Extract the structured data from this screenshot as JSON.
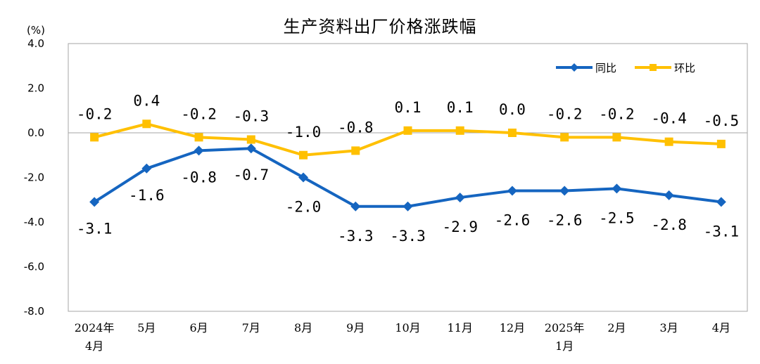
{
  "chart_data": {
    "type": "line",
    "title": "生产资料出厂价格涨跌幅",
    "ylabel": "(%)",
    "ylim": [
      -8.0,
      4.0
    ],
    "yticks": [
      "4.0",
      "2.0",
      "0.0",
      "-2.0",
      "-4.0",
      "-6.0",
      "-8.0"
    ],
    "ytick_values": [
      4.0,
      2.0,
      0.0,
      -2.0,
      -4.0,
      -6.0,
      -8.0
    ],
    "categories": [
      [
        "2024年",
        "4月"
      ],
      [
        "5月"
      ],
      [
        "6月"
      ],
      [
        "7月"
      ],
      [
        "8月"
      ],
      [
        "9月"
      ],
      [
        "10月"
      ],
      [
        "11月"
      ],
      [
        "12月"
      ],
      [
        "2025年",
        "1月"
      ],
      [
        "2月"
      ],
      [
        "3月"
      ],
      [
        "4月"
      ]
    ],
    "series": [
      {
        "name": "同比",
        "color": "#1565C0",
        "marker": "diamond",
        "values": [
          -3.1,
          -1.6,
          -0.8,
          -0.7,
          -2.0,
          -3.3,
          -3.3,
          -2.9,
          -2.6,
          -2.6,
          -2.5,
          -2.8,
          -3.1
        ],
        "labels": [
          "-3.1",
          "-1.6",
          "-0.8",
          "-0.7",
          "-2.0",
          "-3.3",
          "-3.3",
          "-2.9",
          "-2.6",
          "-2.6",
          "-2.5",
          "-2.8",
          "-3.1"
        ]
      },
      {
        "name": "环比",
        "color": "#FFC000",
        "marker": "square",
        "values": [
          -0.2,
          0.4,
          -0.2,
          -0.3,
          -1.0,
          -0.8,
          0.1,
          0.1,
          0.0,
          -0.2,
          -0.2,
          -0.4,
          -0.5
        ],
        "labels": [
          "-0.2",
          "0.4",
          "-0.2",
          "-0.3",
          "-1.0",
          "-0.8",
          "0.1",
          "0.1",
          "0.0",
          "-0.2",
          "-0.2",
          "-0.4",
          "-0.5"
        ]
      }
    ],
    "legend": "top-right",
    "grid": false
  }
}
